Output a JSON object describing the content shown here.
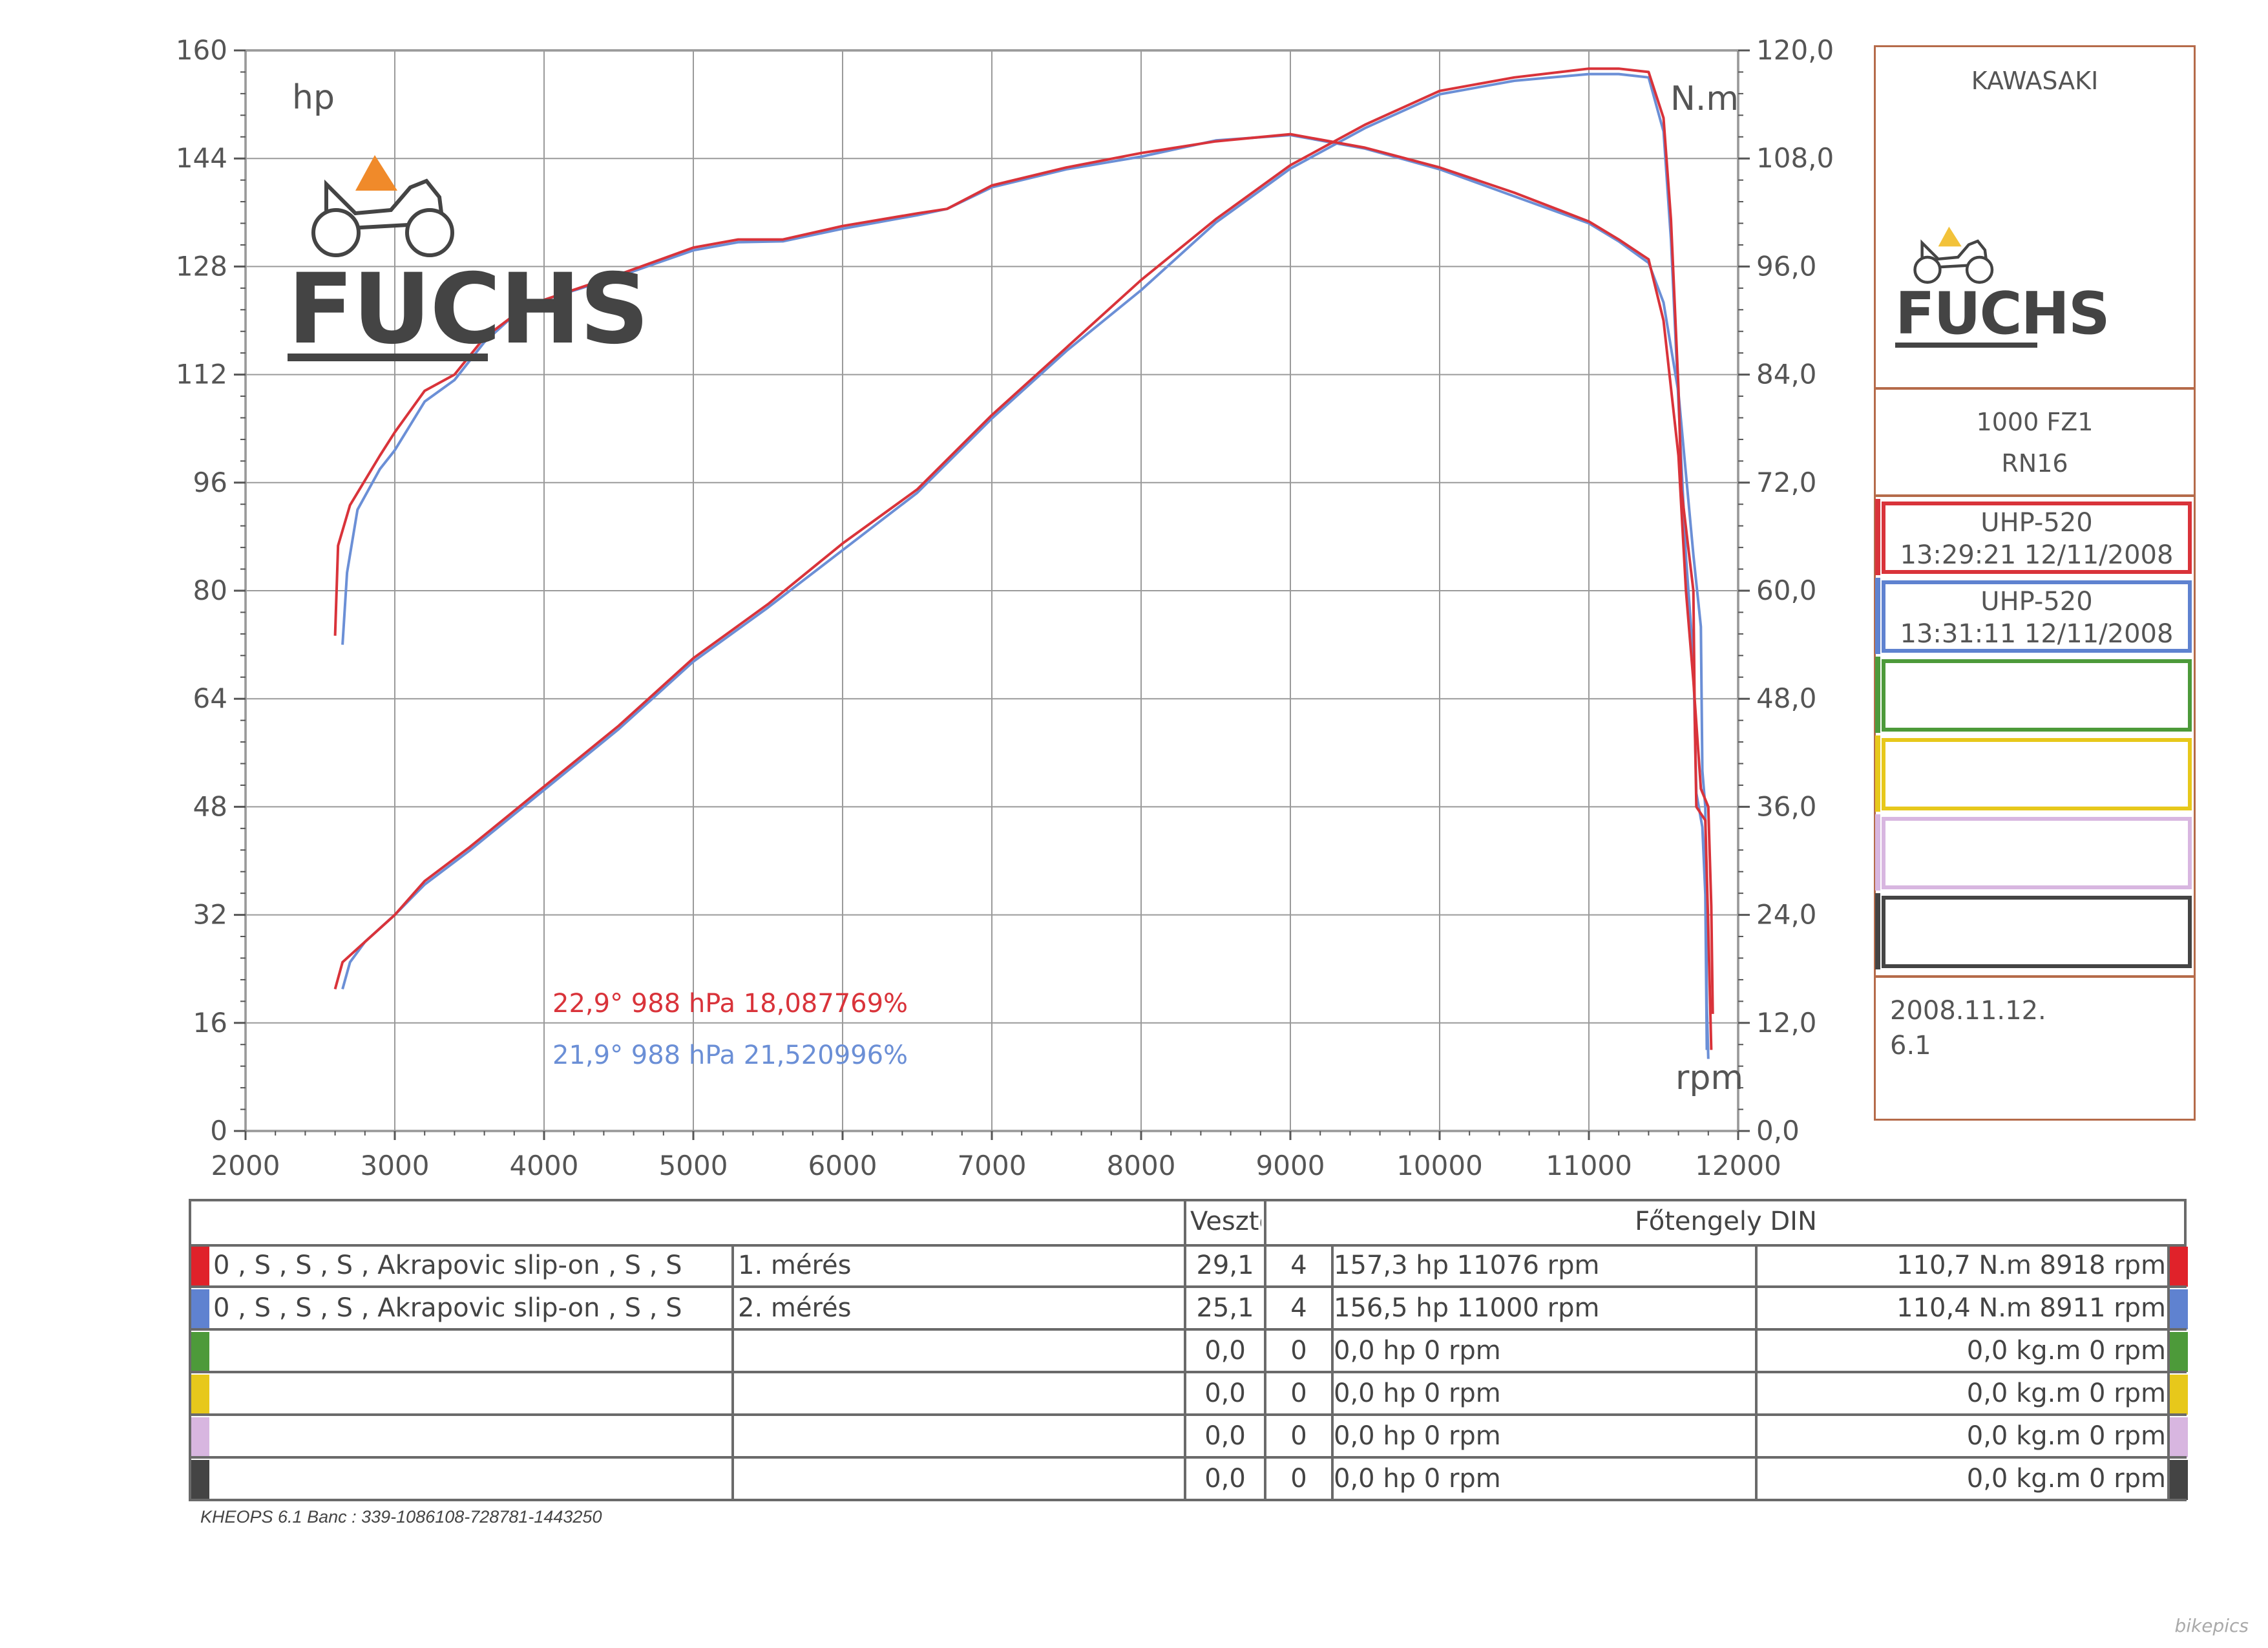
{
  "chart_data": {
    "type": "line",
    "xlabel": "rpm",
    "ylabel_left": "hp",
    "ylabel_right": "N.m",
    "xlim": [
      2000,
      12000
    ],
    "ylim_left": [
      0,
      160
    ],
    "ylim_right": [
      0,
      120
    ],
    "x_ticks": [
      "2000",
      "3000",
      "4000",
      "5000",
      "6000",
      "7000",
      "8000",
      "9000",
      "10000",
      "11000",
      "12000"
    ],
    "y_ticks_left": [
      "0",
      "16",
      "32",
      "48",
      "64",
      "80",
      "96",
      "112",
      "128",
      "144",
      "160"
    ],
    "y_ticks_right": [
      "0,0",
      "12,0",
      "24,0",
      "36,0",
      "48,0",
      "60,0",
      "72,0",
      "84,0",
      "96,0",
      "108,0",
      "120,0"
    ],
    "grid": true,
    "series": [
      {
        "name": "UHP-520 13:29:21 12/11/2008",
        "quantity": "torque",
        "axis": "right",
        "color": "#d9333a",
        "points": [
          [
            2600,
            55
          ],
          [
            2620,
            65
          ],
          [
            2700,
            69.5
          ],
          [
            2900,
            75
          ],
          [
            3000,
            77.6
          ],
          [
            3200,
            82.2
          ],
          [
            3400,
            84
          ],
          [
            3600,
            88.1
          ],
          [
            3800,
            90.6
          ],
          [
            4000,
            92.3
          ],
          [
            4500,
            95.1
          ],
          [
            5000,
            98.1
          ],
          [
            5300,
            99
          ],
          [
            5600,
            99
          ],
          [
            6000,
            100.5
          ],
          [
            6500,
            101.9
          ],
          [
            6700,
            102.4
          ],
          [
            7000,
            105
          ],
          [
            7500,
            107
          ],
          [
            8000,
            108.6
          ],
          [
            8500,
            109.9
          ],
          [
            9000,
            110.7
          ],
          [
            9500,
            109.2
          ],
          [
            10000,
            107
          ],
          [
            10500,
            104.2
          ],
          [
            11000,
            101
          ],
          [
            11200,
            99
          ],
          [
            11400,
            96.8
          ],
          [
            11500,
            90
          ],
          [
            11600,
            75
          ],
          [
            11650,
            60
          ],
          [
            11700,
            50
          ],
          [
            11750,
            38
          ],
          [
            11800,
            36
          ],
          [
            11820,
            25
          ],
          [
            11830,
            13
          ]
        ]
      },
      {
        "name": "UHP-520 13:31:11 12/11/2008",
        "quantity": "torque",
        "axis": "right",
        "color": "#6b8fd6",
        "points": [
          [
            2650,
            54
          ],
          [
            2680,
            62
          ],
          [
            2750,
            69
          ],
          [
            2900,
            73.5
          ],
          [
            3000,
            75.6
          ],
          [
            3200,
            81
          ],
          [
            3400,
            83.4
          ],
          [
            3600,
            87.6
          ],
          [
            3800,
            90.6
          ],
          [
            4000,
            92.3
          ],
          [
            4500,
            94.9
          ],
          [
            5000,
            97.8
          ],
          [
            5300,
            98.7
          ],
          [
            5600,
            98.8
          ],
          [
            6000,
            100.2
          ],
          [
            6500,
            101.7
          ],
          [
            6700,
            102.4
          ],
          [
            7000,
            104.8
          ],
          [
            7500,
            106.8
          ],
          [
            8000,
            108.2
          ],
          [
            8500,
            110
          ],
          [
            9000,
            110.6
          ],
          [
            9500,
            109.1
          ],
          [
            10000,
            106.8
          ],
          [
            10500,
            103.8
          ],
          [
            11000,
            100.8
          ],
          [
            11200,
            98.8
          ],
          [
            11400,
            96.4
          ],
          [
            11500,
            92
          ],
          [
            11600,
            82
          ],
          [
            11700,
            64
          ],
          [
            11750,
            56
          ],
          [
            11760,
            40
          ],
          [
            11780,
            36
          ],
          [
            11790,
            14
          ],
          [
            11800,
            8
          ]
        ]
      },
      {
        "name": "UHP-520 13:29:21 12/11/2008",
        "quantity": "power",
        "axis": "left",
        "color": "#d9333a",
        "points": [
          [
            2600,
            21
          ],
          [
            2650,
            25
          ],
          [
            2800,
            28
          ],
          [
            3000,
            32
          ],
          [
            3200,
            37
          ],
          [
            3500,
            42
          ],
          [
            4000,
            51
          ],
          [
            4500,
            60
          ],
          [
            5000,
            70
          ],
          [
            5500,
            78
          ],
          [
            6000,
            87
          ],
          [
            6500,
            95
          ],
          [
            7000,
            106
          ],
          [
            7500,
            116
          ],
          [
            8000,
            126
          ],
          [
            8500,
            135
          ],
          [
            9000,
            143
          ],
          [
            9500,
            149
          ],
          [
            10000,
            154
          ],
          [
            10500,
            156
          ],
          [
            11000,
            157.3
          ],
          [
            11200,
            157.3
          ],
          [
            11400,
            156.8
          ],
          [
            11500,
            150
          ],
          [
            11550,
            135
          ],
          [
            11600,
            110
          ],
          [
            11620,
            95
          ],
          [
            11700,
            80
          ],
          [
            11710,
            60
          ],
          [
            11720,
            48
          ],
          [
            11780,
            46
          ],
          [
            11800,
            30
          ],
          [
            11820,
            12
          ]
        ]
      },
      {
        "name": "UHP-520 13:31:11 12/11/2008",
        "quantity": "power",
        "axis": "left",
        "color": "#6b8fd6",
        "points": [
          [
            2650,
            21
          ],
          [
            2700,
            25
          ],
          [
            2800,
            28
          ],
          [
            3000,
            32
          ],
          [
            3200,
            36.5
          ],
          [
            3500,
            41.5
          ],
          [
            4000,
            50.5
          ],
          [
            4500,
            59.5
          ],
          [
            5000,
            69.5
          ],
          [
            5500,
            77.5
          ],
          [
            6000,
            86
          ],
          [
            6500,
            94.5
          ],
          [
            7000,
            105.5
          ],
          [
            7500,
            115.5
          ],
          [
            8000,
            124.5
          ],
          [
            8500,
            134.5
          ],
          [
            9000,
            142.5
          ],
          [
            9500,
            148.5
          ],
          [
            10000,
            153.5
          ],
          [
            10500,
            155.5
          ],
          [
            11000,
            156.5
          ],
          [
            11200,
            156.5
          ],
          [
            11400,
            156
          ],
          [
            11500,
            148
          ],
          [
            11550,
            132
          ],
          [
            11600,
            108
          ],
          [
            11650,
            85
          ],
          [
            11700,
            70
          ],
          [
            11720,
            50
          ],
          [
            11760,
            45
          ],
          [
            11780,
            35
          ],
          [
            11790,
            12
          ]
        ]
      }
    ],
    "annotations": [
      {
        "text": "22,9°  988 hPa  18,087769%",
        "color": "#d9333a"
      },
      {
        "text": "21,9°  988 hPa  21,520996%",
        "color": "#6b8fd6"
      }
    ]
  },
  "logo": {
    "word": "FUCHS"
  },
  "side": {
    "brand": "KAWASAKI",
    "model_line1": "1000 FZ1",
    "model_line2": "RN16",
    "runs": [
      {
        "line1": "UHP-520",
        "line2": "13:29:21  12/11/2008",
        "color": "#d9333a"
      },
      {
        "line1": "UHP-520",
        "line2": "13:31:11  12/11/2008",
        "color": "#5f82d0"
      },
      {
        "line1": "",
        "line2": "",
        "color": "#4d9a3a"
      },
      {
        "line1": "",
        "line2": "",
        "color": "#e7c81b"
      },
      {
        "line1": "",
        "line2": "",
        "color": "#d8b6e0"
      },
      {
        "line1": "",
        "line2": "",
        "color": "#444444"
      }
    ],
    "date": "2008.11.12.",
    "version": "6.1"
  },
  "table": {
    "header_loss": "Veszteség(N.m)",
    "header_din": "Főtengely DIN",
    "rows": [
      {
        "color": "#e0222a",
        "desc": "0  , S  , S  , S  , Akrapovic slip-on , S  , S",
        "run": "1. mérés",
        "loss": "29,1",
        "n": "4",
        "power": "157,3 hp 11076 rpm",
        "torque": "110,7 N.m 8918 rpm"
      },
      {
        "color": "#5f82d0",
        "desc": "0  , S  , S  , S  , Akrapovic slip-on , S  , S",
        "run": "2. mérés",
        "loss": "25,1",
        "n": "4",
        "power": "156,5 hp 11000 rpm",
        "torque": "110,4 N.m 8911 rpm"
      },
      {
        "color": "#4d9a3a",
        "desc": "",
        "run": "",
        "loss": "0,0",
        "n": "0",
        "power": "0,0 hp 0 rpm",
        "torque": "0,0 kg.m 0 rpm"
      },
      {
        "color": "#e7c81b",
        "desc": "",
        "run": "",
        "loss": "0,0",
        "n": "0",
        "power": "0,0 hp 0 rpm",
        "torque": "0,0 kg.m 0 rpm"
      },
      {
        "color": "#d8b6e0",
        "desc": "",
        "run": "",
        "loss": "0,0",
        "n": "0",
        "power": "0,0 hp 0 rpm",
        "torque": "0,0 kg.m 0 rpm"
      },
      {
        "color": "#444444",
        "desc": "",
        "run": "",
        "loss": "0,0",
        "n": "0",
        "power": "0,0 hp 0 rpm",
        "torque": "0,0 kg.m 0 rpm"
      }
    ]
  },
  "footer": "KHEOPS 6.1  Banc : 339-1086108-728781-1443250",
  "watermark": "bikepics"
}
